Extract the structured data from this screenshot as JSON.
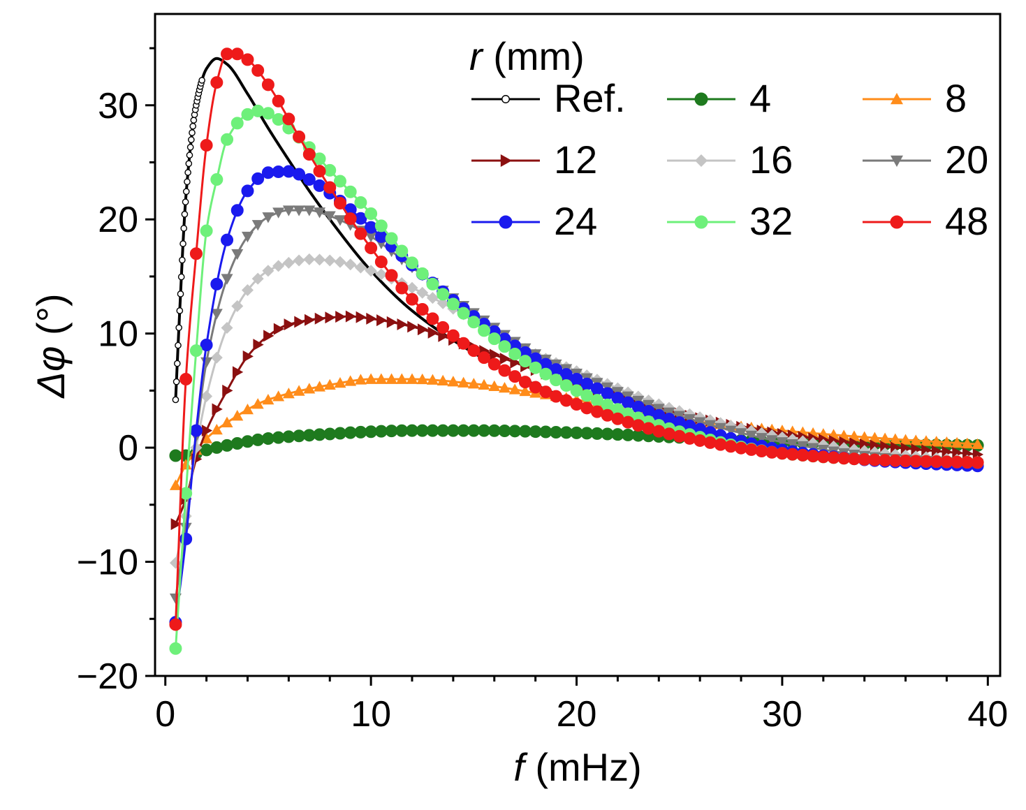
{
  "chart_data": {
    "type": "line",
    "xlabel": {
      "var": "f",
      "unit": " (mHz)"
    },
    "ylabel": {
      "var": "Δφ",
      "unit": " (°)"
    },
    "xlim": [
      -0.5,
      40.6
    ],
    "ylim": [
      -20,
      38
    ],
    "x_ticks": [
      0,
      10,
      20,
      30,
      40
    ],
    "x_tick_labels": [
      "0",
      "10",
      "20",
      "30",
      "40"
    ],
    "y_ticks": [
      -20,
      -10,
      0,
      10,
      20,
      30
    ],
    "y_tick_labels": [
      "−20",
      "−10",
      "0",
      "10",
      "20",
      "30"
    ],
    "x_minor_step": 2,
    "y_minor_step": 5,
    "grid": false,
    "legend": {
      "title_var": "r",
      "title_unit": " (mm)",
      "placement": "top-right",
      "columns": 3
    },
    "x_start": 0.5,
    "x_step": 0.5,
    "series": [
      {
        "name": "Ref.",
        "color": "#000000",
        "marker": "circle-open",
        "marker_every": 1,
        "marker_end_x": 1.8,
        "anchors": [
          [
            0.5,
            4.2
          ],
          [
            0.7,
            12.0
          ],
          [
            1.0,
            22.0
          ],
          [
            1.5,
            30.0
          ],
          [
            2.0,
            33.2
          ],
          [
            2.5,
            34.1
          ],
          [
            3.0,
            33.6
          ],
          [
            4.0,
            31.0
          ],
          [
            5.0,
            28.0
          ],
          [
            6.0,
            25.2
          ],
          [
            7.0,
            22.5
          ],
          [
            8.0,
            20.0
          ],
          [
            10.0,
            15.5
          ],
          [
            12.0,
            12.0
          ],
          [
            15.0,
            8.3
          ],
          [
            18.0,
            5.5
          ],
          [
            20.0,
            4.0
          ],
          [
            25.0,
            1.0
          ],
          [
            30.0,
            -0.4
          ],
          [
            35.0,
            -1.0
          ],
          [
            39.5,
            -1.2
          ]
        ]
      },
      {
        "name": "4",
        "color": "#1e7a1e",
        "marker": "circle",
        "marker_every": 1,
        "anchors": [
          [
            0.5,
            -0.7
          ],
          [
            1.0,
            -0.7
          ],
          [
            2.0,
            -0.2
          ],
          [
            3.0,
            0.2
          ],
          [
            5.0,
            0.8
          ],
          [
            8.0,
            1.2
          ],
          [
            10.0,
            1.4
          ],
          [
            12.0,
            1.5
          ],
          [
            15.0,
            1.5
          ],
          [
            20.0,
            1.3
          ],
          [
            25.0,
            0.9
          ],
          [
            30.0,
            0.5
          ],
          [
            35.0,
            0.3
          ],
          [
            39.5,
            0.2
          ]
        ]
      },
      {
        "name": "8",
        "color": "#ff8c1a",
        "marker": "triangle-up",
        "marker_every": 1,
        "anchors": [
          [
            0.5,
            -3.3
          ],
          [
            1.0,
            -1.5
          ],
          [
            2.0,
            0.8
          ],
          [
            3.0,
            2.2
          ],
          [
            5.0,
            4.2
          ],
          [
            8.0,
            5.5
          ],
          [
            10.0,
            6.0
          ],
          [
            12.0,
            6.0
          ],
          [
            15.0,
            5.6
          ],
          [
            18.0,
            4.8
          ],
          [
            20.0,
            4.2
          ],
          [
            25.0,
            2.5
          ],
          [
            30.0,
            1.5
          ],
          [
            35.0,
            0.8
          ],
          [
            39.5,
            0.3
          ]
        ]
      },
      {
        "name": "12",
        "color": "#8b1010",
        "marker": "triangle-right",
        "marker_every": 1,
        "anchors": [
          [
            0.5,
            -6.7
          ],
          [
            1.0,
            -4.5
          ],
          [
            1.5,
            -1.0
          ],
          [
            2.0,
            1.5
          ],
          [
            3.0,
            5.0
          ],
          [
            4.0,
            8.0
          ],
          [
            5.0,
            9.8
          ],
          [
            6.0,
            10.8
          ],
          [
            8.0,
            11.4
          ],
          [
            9.0,
            11.5
          ],
          [
            10.0,
            11.3
          ],
          [
            12.0,
            10.6
          ],
          [
            15.0,
            8.8
          ],
          [
            18.0,
            6.8
          ],
          [
            20.0,
            5.6
          ],
          [
            25.0,
            3.0
          ],
          [
            30.0,
            1.2
          ],
          [
            35.0,
            0.1
          ],
          [
            39.5,
            -0.6
          ]
        ]
      },
      {
        "name": "16",
        "color": "#c4c4c4",
        "marker": "diamond",
        "marker_every": 1,
        "anchors": [
          [
            0.5,
            -10.1
          ],
          [
            1.0,
            -6.0
          ],
          [
            1.5,
            0.0
          ],
          [
            2.0,
            4.5
          ],
          [
            3.0,
            10.5
          ],
          [
            4.0,
            13.8
          ],
          [
            5.0,
            15.5
          ],
          [
            6.0,
            16.2
          ],
          [
            7.0,
            16.5
          ],
          [
            8.0,
            16.4
          ],
          [
            10.0,
            15.5
          ],
          [
            12.0,
            14.0
          ],
          [
            15.0,
            11.2
          ],
          [
            18.0,
            8.2
          ],
          [
            20.0,
            6.7
          ],
          [
            25.0,
            3.2
          ],
          [
            30.0,
            0.9
          ],
          [
            35.0,
            -0.5
          ],
          [
            39.5,
            -1.2
          ]
        ]
      },
      {
        "name": "20",
        "color": "#7a7a7a",
        "marker": "triangle-down",
        "marker_every": 1,
        "anchors": [
          [
            0.5,
            -13.2
          ],
          [
            1.0,
            -7.0
          ],
          [
            1.5,
            1.0
          ],
          [
            2.0,
            7.5
          ],
          [
            3.0,
            14.8
          ],
          [
            4.0,
            18.5
          ],
          [
            5.0,
            20.2
          ],
          [
            6.0,
            20.8
          ],
          [
            7.0,
            20.8
          ],
          [
            8.0,
            20.3
          ],
          [
            10.0,
            18.5
          ],
          [
            12.0,
            15.8
          ],
          [
            15.0,
            11.8
          ],
          [
            18.0,
            8.2
          ],
          [
            20.0,
            6.5
          ],
          [
            25.0,
            2.8
          ],
          [
            30.0,
            0.5
          ],
          [
            35.0,
            -0.9
          ],
          [
            39.5,
            -1.4
          ]
        ]
      },
      {
        "name": "24",
        "color": "#1a1aee",
        "marker": "circle",
        "marker_every": 1,
        "anchors": [
          [
            0.5,
            -15.3
          ],
          [
            1.0,
            -8.0
          ],
          [
            1.5,
            1.5
          ],
          [
            2.0,
            9.0
          ],
          [
            3.0,
            18.2
          ],
          [
            4.0,
            22.5
          ],
          [
            5.0,
            24.1
          ],
          [
            6.0,
            24.2
          ],
          [
            7.0,
            23.5
          ],
          [
            8.0,
            22.3
          ],
          [
            10.0,
            19.3
          ],
          [
            12.0,
            16.0
          ],
          [
            15.0,
            11.5
          ],
          [
            18.0,
            7.8
          ],
          [
            20.0,
            6.0
          ],
          [
            25.0,
            2.2
          ],
          [
            30.0,
            -0.2
          ],
          [
            35.0,
            -1.2
          ],
          [
            39.5,
            -1.6
          ]
        ]
      },
      {
        "name": "32",
        "color": "#6ef07a",
        "marker": "circle",
        "marker_every": 1,
        "anchors": [
          [
            0.5,
            -17.6
          ],
          [
            1.0,
            -4.0
          ],
          [
            1.5,
            8.5
          ],
          [
            2.0,
            19.0
          ],
          [
            2.5,
            23.5
          ],
          [
            3.0,
            27.0
          ],
          [
            4.0,
            29.2
          ],
          [
            4.5,
            29.5
          ],
          [
            5.0,
            29.3
          ],
          [
            6.0,
            28.0
          ],
          [
            7.0,
            26.3
          ],
          [
            8.0,
            24.3
          ],
          [
            10.0,
            20.5
          ],
          [
            12.0,
            16.2
          ],
          [
            15.0,
            11.0
          ],
          [
            18.0,
            7.0
          ],
          [
            20.0,
            5.0
          ],
          [
            25.0,
            1.4
          ],
          [
            30.0,
            -0.5
          ],
          [
            35.0,
            -1.1
          ],
          [
            39.5,
            -1.3
          ]
        ]
      },
      {
        "name": "48",
        "color": "#ee1a1a",
        "marker": "circle",
        "marker_every": 1,
        "anchors": [
          [
            0.5,
            -15.5
          ],
          [
            1.0,
            6.0
          ],
          [
            1.5,
            17.0
          ],
          [
            2.0,
            26.5
          ],
          [
            2.5,
            32.0
          ],
          [
            3.0,
            34.5
          ],
          [
            3.5,
            34.5
          ],
          [
            4.0,
            34.0
          ],
          [
            5.0,
            31.8
          ],
          [
            6.0,
            28.8
          ],
          [
            7.0,
            25.7
          ],
          [
            8.0,
            22.8
          ],
          [
            10.0,
            17.5
          ],
          [
            12.0,
            13.0
          ],
          [
            15.0,
            8.5
          ],
          [
            18.0,
            5.3
          ],
          [
            20.0,
            3.8
          ],
          [
            25.0,
            1.0
          ],
          [
            30.0,
            -0.5
          ],
          [
            35.0,
            -1.1
          ],
          [
            39.5,
            -1.3
          ]
        ]
      }
    ]
  }
}
